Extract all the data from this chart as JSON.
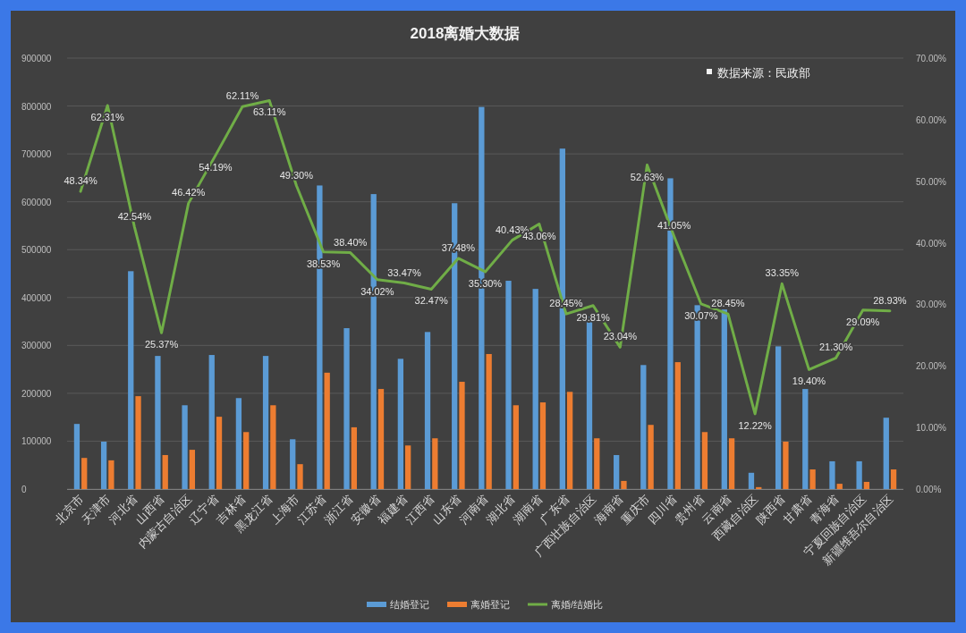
{
  "chart_data": {
    "type": "bar",
    "title": "2018离婚大数据",
    "categories": [
      "北京市",
      "天津市",
      "河北省",
      "山西省",
      "内蒙古自治区",
      "辽宁省",
      "吉林省",
      "黑龙江省",
      "上海市",
      "江苏省",
      "浙江省",
      "安徽省",
      "福建省",
      "江西省",
      "山东省",
      "河南省",
      "湖北省",
      "湖南省",
      "广东省",
      "广西壮族自治区",
      "海南省",
      "重庆市",
      "四川省",
      "贵州省",
      "云南省",
      "西藏自治区",
      "陕西省",
      "甘肃省",
      "青海省",
      "宁夏回族自治区",
      "新疆维吾尔自治区"
    ],
    "series": [
      {
        "name": "结婚登记",
        "color": "#5b9bd5",
        "values": [
          136000,
          99000,
          455000,
          278000,
          175000,
          280000,
          190000,
          278000,
          104000,
          634000,
          336000,
          616000,
          272000,
          328000,
          597000,
          798000,
          435000,
          418000,
          711000,
          360000,
          71000,
          259000,
          649000,
          384000,
          375000,
          34000,
          298000,
          209000,
          58000,
          58000,
          149000
        ]
      },
      {
        "name": "离婚登记",
        "color": "#ed7d31",
        "values": [
          65000,
          60000,
          194000,
          71000,
          82000,
          151000,
          119000,
          175000,
          52000,
          243000,
          129000,
          209000,
          91000,
          106000,
          224000,
          282000,
          175000,
          181000,
          203000,
          106000,
          17000,
          134000,
          265000,
          119000,
          106000,
          4000,
          99000,
          41000,
          11000,
          15000,
          41000
        ]
      },
      {
        "name": "离婚/结婚比",
        "type": "line",
        "axis": "y2",
        "color": "#70ad47",
        "values": [
          48.34,
          62.31,
          42.54,
          25.37,
          46.42,
          54.19,
          62.11,
          63.11,
          49.3,
          38.53,
          38.4,
          34.02,
          33.47,
          32.47,
          37.48,
          35.3,
          40.43,
          43.06,
          28.45,
          29.81,
          23.04,
          52.63,
          41.05,
          30.07,
          28.45,
          12.22,
          33.35,
          19.4,
          21.3,
          29.09,
          28.93
        ],
        "value_labels": [
          "48.34%",
          "62.31%",
          "42.54%",
          "25.37%",
          "46.42%",
          "54.19%",
          "62.11%",
          "63.11%",
          "49.30%",
          "38.53%",
          "38.40%",
          "34.02%",
          "33.47%",
          "32.47%",
          "37.48%",
          "35.30%",
          "40.43%",
          "43.06%",
          "28.45%",
          "29.81%",
          "23.04%",
          "52.63%",
          "41.05%",
          "30.07%",
          "28.45%",
          "12.22%",
          "33.35%",
          "19.40%",
          "21.30%",
          "29.09%",
          "28.93%"
        ]
      }
    ],
    "ylim": [
      0,
      900000
    ],
    "yticks": [
      0,
      100000,
      200000,
      300000,
      400000,
      500000,
      600000,
      700000,
      800000,
      900000
    ],
    "y2lim": [
      0,
      70
    ],
    "y2ticks": [
      {
        "value": 0,
        "label": "0.00%"
      },
      {
        "value": 10,
        "label": "10.00%"
      },
      {
        "value": 20,
        "label": "20.00%"
      },
      {
        "value": 30,
        "label": "30.00%"
      },
      {
        "value": 40,
        "label": "40.00%"
      },
      {
        "value": 50,
        "label": "50.00%"
      },
      {
        "value": 60,
        "label": "60.00%"
      },
      {
        "value": 70,
        "label": "70.00%"
      }
    ],
    "grid": "y",
    "legend": "bottom",
    "annotations": [
      "数据来源：民政部"
    ]
  }
}
